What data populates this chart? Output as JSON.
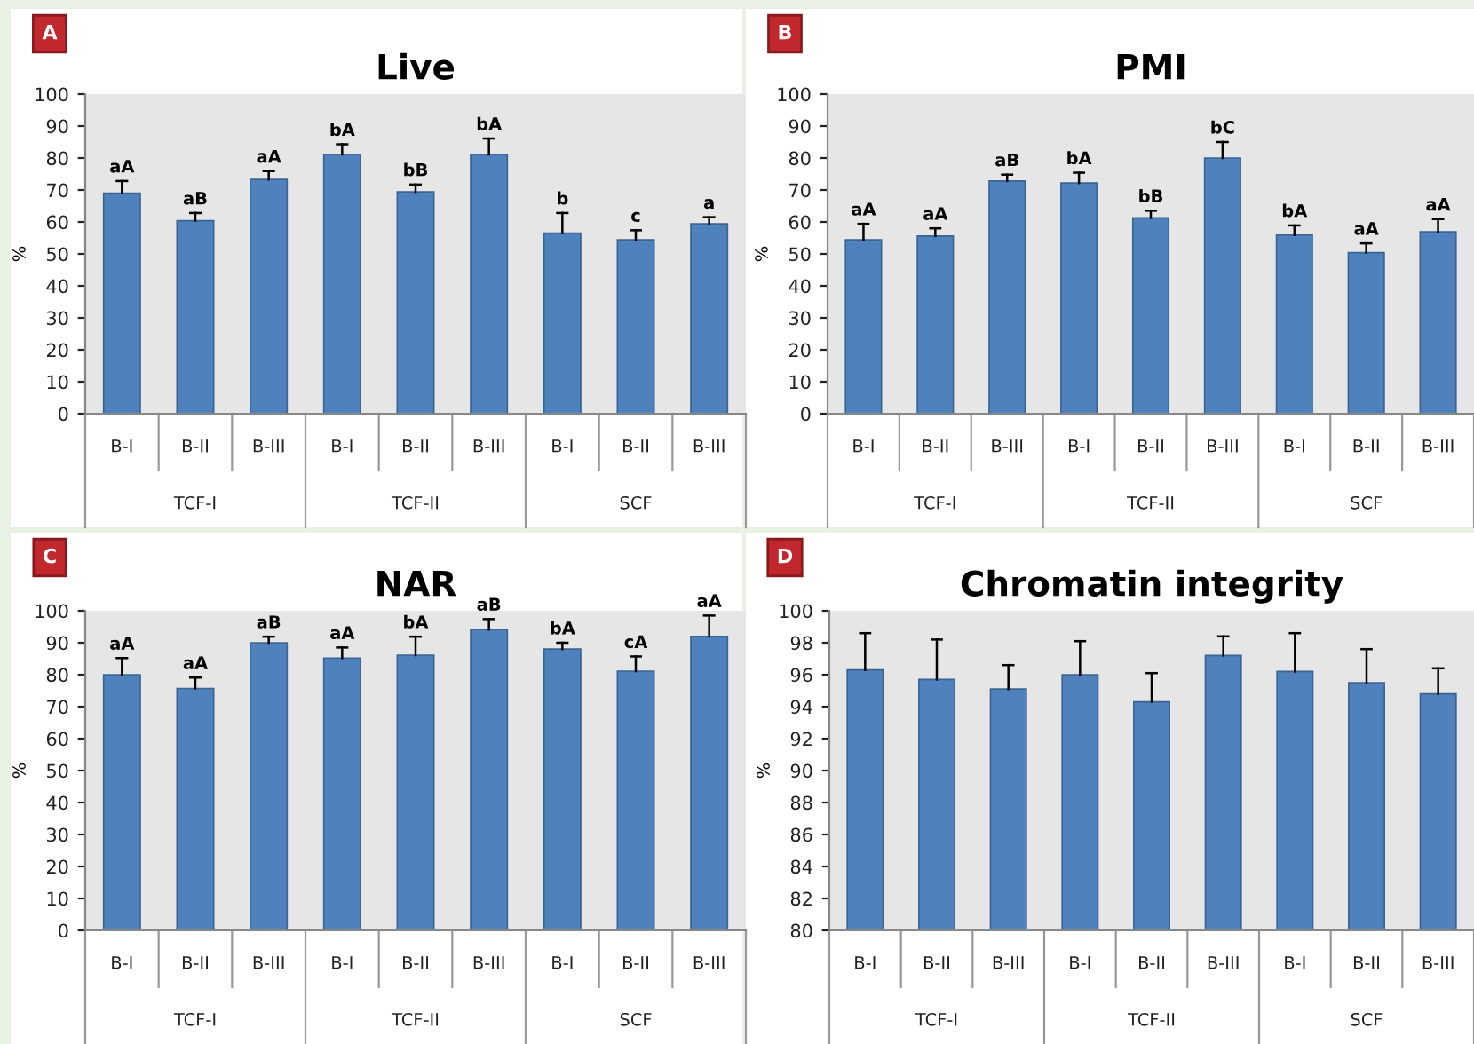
{
  "chart_data": [
    {
      "type": "bar",
      "title": "Live",
      "ylabel": "%",
      "categories": [
        "B-I",
        "B-II",
        "B-III",
        "B-I",
        "B-II",
        "B-III",
        "B-I",
        "B-II",
        "B-III"
      ],
      "color": "#4f81bd",
      "values": [
        69,
        60.4,
        73.3,
        81.1,
        69.4,
        81.1,
        56.5,
        54.4,
        59.4
      ],
      "errors": [
        [
          69,
          72.8
        ],
        [
          60.4,
          62.8
        ],
        [
          73.3,
          75.9
        ],
        [
          81.1,
          84.3
        ],
        [
          69.4,
          71.7
        ],
        [
          81.1,
          86.1
        ],
        [
          56.5,
          62.8
        ],
        [
          54.4,
          57.4
        ],
        [
          59.4,
          61.5
        ]
      ],
      "value_labels": [
        "aA",
        "aB",
        "aA",
        "bA",
        "bB",
        "bA",
        "b",
        "c",
        "a"
      ],
      "ylim": [
        0,
        100
      ],
      "yticks": [
        0,
        10,
        20,
        30,
        40,
        50,
        60,
        70,
        80,
        90,
        100
      ],
      "annotations": [
        "A",
        "TCF-I",
        "TCF-II",
        "SCF"
      ]
    },
    {
      "type": "bar",
      "title": "PMI",
      "ylabel": "%",
      "categories": [
        "B-I",
        "B-II",
        "B-III",
        "B-I",
        "B-II",
        "B-III",
        "B-I",
        "B-II",
        "B-III"
      ],
      "color": "#4f81bd",
      "values": [
        54.4,
        55.6,
        72.8,
        72.2,
        61.3,
        80,
        55.9,
        50.4,
        56.9
      ],
      "errors": [
        [
          54.4,
          59.4
        ],
        [
          55.6,
          58
        ],
        [
          72.8,
          74.8
        ],
        [
          72.2,
          75.4
        ],
        [
          61.3,
          63.5
        ],
        [
          80,
          85
        ],
        [
          55.9,
          58.9
        ],
        [
          50.4,
          53.3
        ],
        [
          56.9,
          60.9
        ]
      ],
      "value_labels": [
        "aA",
        "aA",
        "aB",
        "bA",
        "bB",
        "bC",
        "bA",
        "aA",
        "aA"
      ],
      "ylim": [
        0,
        100
      ],
      "yticks": [
        0,
        10,
        20,
        30,
        40,
        50,
        60,
        70,
        80,
        90,
        100
      ],
      "annotations": [
        "B",
        "TCF-I",
        "TCF-II",
        "SCF"
      ]
    },
    {
      "type": "bar",
      "title": "NAR",
      "ylabel": "%",
      "categories": [
        "B-I",
        "B-II",
        "B-III",
        "B-I",
        "B-II",
        "B-III",
        "B-I",
        "B-II",
        "B-III"
      ],
      "color": "#4f81bd",
      "values": [
        80,
        75.7,
        90,
        85.2,
        86.1,
        94.1,
        88,
        81.1,
        92
      ],
      "errors": [
        [
          80,
          85.2
        ],
        [
          75.7,
          79.1
        ],
        [
          90,
          91.9
        ],
        [
          85.2,
          88.5
        ],
        [
          86.1,
          91.9
        ],
        [
          94.1,
          97.4
        ],
        [
          88,
          90
        ],
        [
          81.1,
          85.7
        ],
        [
          92,
          98.5
        ]
      ],
      "value_labels": [
        "aA",
        "aA",
        "aB",
        "aA",
        "bA",
        "aB",
        "bA",
        "cA",
        "aA"
      ],
      "ylim": [
        0,
        100
      ],
      "yticks": [
        0,
        10,
        20,
        30,
        40,
        50,
        60,
        70,
        80,
        90,
        100
      ],
      "annotations": [
        "C",
        "TCF-I",
        "TCF-II",
        "SCF"
      ]
    },
    {
      "type": "bar",
      "title": "Chromatin integrity",
      "ylabel": "%",
      "categories": [
        "B-I",
        "B-II",
        "B-III",
        "B-I",
        "B-II",
        "B-III",
        "B-I",
        "B-II",
        "B-III"
      ],
      "color": "#4f81bd",
      "values": [
        96.3,
        95.7,
        95.1,
        96.0,
        94.3,
        97.2,
        96.2,
        95.5,
        94.8
      ],
      "errors": [
        [
          96.3,
          98.6
        ],
        [
          95.7,
          98.2
        ],
        [
          95.1,
          96.6
        ],
        [
          96.0,
          98.1
        ],
        [
          94.3,
          96.1
        ],
        [
          97.2,
          98.4
        ],
        [
          96.2,
          98.6
        ],
        [
          95.5,
          97.6
        ],
        [
          94.8,
          96.4
        ]
      ],
      "ylim": [
        80,
        100
      ],
      "yticks": [
        80,
        82,
        84,
        86,
        88,
        90,
        92,
        94,
        96,
        98,
        100
      ],
      "annotations": [
        "D",
        "TCF-I",
        "TCF-II",
        "SCF"
      ]
    }
  ]
}
